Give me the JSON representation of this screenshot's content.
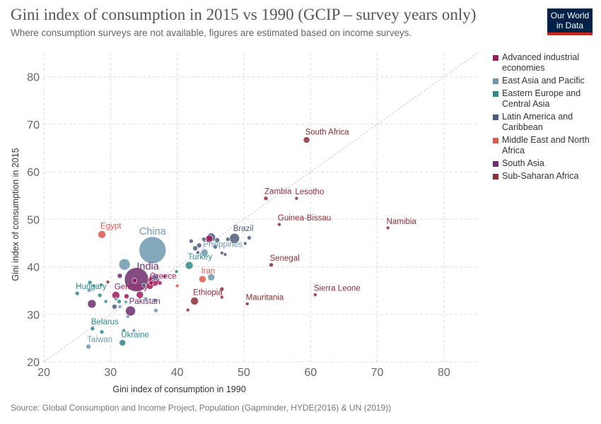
{
  "header": {
    "title": "Gini index of consumption in 2015 vs 1990 (GCIP – survey years only)",
    "subtitle": "Where consumption surveys are not available, figures are estimated based on income surveys.",
    "logo_line1": "Our World",
    "logo_line2": "in Data"
  },
  "footer": {
    "source": "Source: Global Consumption and Income Project, Population (Gapminder, HYDE(2016) & UN (2019))"
  },
  "chart_data": {
    "type": "scatter",
    "xlabel": "Gini index of consumption in 1990",
    "ylabel": "Gini index of consumption in 2015",
    "xlim": [
      20,
      85
    ],
    "ylim": [
      20,
      85
    ],
    "xticks": [
      20,
      30,
      40,
      50,
      60,
      70,
      80
    ],
    "yticks": [
      20,
      30,
      40,
      50,
      60,
      70,
      80
    ],
    "grid": true,
    "reference_line": "y = x",
    "legend_position": "right",
    "regions": [
      {
        "name": "Advanced industrial economies",
        "color": "#a2195b"
      },
      {
        "name": "East Asia and Pacific",
        "color": "#6d99b0"
      },
      {
        "name": "Eastern Europe and Central Asia",
        "color": "#2e8b8a"
      },
      {
        "name": "Latin America and Caribbean",
        "color": "#4c5d7b"
      },
      {
        "name": "Middle East and North Africa",
        "color": "#e0574f"
      },
      {
        "name": "South Asia",
        "color": "#6d2e6e"
      },
      {
        "name": "Sub-Saharan Africa",
        "color": "#8e2d38"
      }
    ],
    "points": [
      {
        "label": "South Africa",
        "x": 59.4,
        "y": 66.7,
        "r": 4.5,
        "region": 6
      },
      {
        "label": "Zambia",
        "x": 53.3,
        "y": 54.4,
        "r": 3,
        "region": 6
      },
      {
        "label": "Lesotho",
        "x": 57.9,
        "y": 54.4,
        "r": 2.5,
        "region": 6
      },
      {
        "label": "Guinea-Bissau",
        "x": 55.3,
        "y": 48.9,
        "r": 2.5,
        "region": 6
      },
      {
        "label": "Namibia",
        "x": 71.6,
        "y": 48.2,
        "r": 2.5,
        "region": 6
      },
      {
        "label": "Senegal",
        "x": 54.1,
        "y": 40.4,
        "r": 3,
        "region": 6
      },
      {
        "label": "Sierra Leone",
        "x": 60.7,
        "y": 34.1,
        "r": 2.5,
        "region": 6
      },
      {
        "label": "Mauritania",
        "x": 50.5,
        "y": 32.2,
        "r": 2.5,
        "region": 6
      },
      {
        "label": "Ethiopia",
        "x": 42.6,
        "y": 32.8,
        "r": 5.5,
        "region": 6
      },
      {
        "label": "Egypt",
        "x": 28.7,
        "y": 46.8,
        "r": 5.5,
        "region": 4
      },
      {
        "label": "Iran",
        "x": 43.8,
        "y": 37.4,
        "r": 5,
        "region": 4
      },
      {
        "label": "China",
        "x": 36.3,
        "y": 43.5,
        "r": 19,
        "region": 1
      },
      {
        "label": "Philippines",
        "x": 44.1,
        "y": 43.0,
        "r": 5,
        "region": 1
      },
      {
        "label": "Brazil",
        "x": 48.6,
        "y": 46.0,
        "r": 7,
        "region": 3
      },
      {
        "label": "India",
        "x": 33.9,
        "y": 37.3,
        "r": 17,
        "region": 5
      },
      {
        "label": "Pakistan",
        "x": 33.0,
        "y": 30.7,
        "r": 7,
        "region": 5
      },
      {
        "label": "Turkey",
        "x": 41.8,
        "y": 40.3,
        "r": 5.5,
        "region": 2
      },
      {
        "label": "Greece",
        "x": 36.1,
        "y": 36.6,
        "r": 3,
        "region": 0
      },
      {
        "label": "Germany",
        "x": 30.8,
        "y": 34.0,
        "r": 5.5,
        "region": 0
      },
      {
        "label": "Hungary",
        "x": 25.0,
        "y": 34.4,
        "r": 3,
        "region": 2
      },
      {
        "label": "Belarus",
        "x": 27.3,
        "y": 27.0,
        "r": 3,
        "region": 2
      },
      {
        "label": "Ukraine",
        "x": 31.8,
        "y": 24.0,
        "r": 4.5,
        "region": 2
      },
      {
        "label": "Taiwan",
        "x": 26.7,
        "y": 23.2,
        "r": 3.5,
        "region": 1
      },
      {
        "x": 32.1,
        "y": 40.5,
        "r": 8,
        "region": 1
      },
      {
        "x": 36.7,
        "y": 37.8,
        "r": 5,
        "region": 1
      },
      {
        "x": 45.1,
        "y": 37.8,
        "r": 5,
        "region": 1
      },
      {
        "x": 45.1,
        "y": 46.2,
        "r": 6,
        "region": 3
      },
      {
        "x": 44.8,
        "y": 45.9,
        "r": 5,
        "region": 0
      },
      {
        "x": 46.0,
        "y": 45.6,
        "r": 3.5,
        "region": 3
      },
      {
        "x": 44.0,
        "y": 45.8,
        "r": 3,
        "region": 3
      },
      {
        "x": 43.3,
        "y": 44.5,
        "r": 3.5,
        "region": 3
      },
      {
        "x": 42.1,
        "y": 45.4,
        "r": 3,
        "region": 3
      },
      {
        "x": 42.7,
        "y": 43.9,
        "r": 3.5,
        "region": 3
      },
      {
        "x": 45.7,
        "y": 44.2,
        "r": 3,
        "region": 3
      },
      {
        "x": 47.6,
        "y": 45.8,
        "r": 3,
        "region": 3
      },
      {
        "x": 50.8,
        "y": 46.1,
        "r": 3,
        "region": 3
      },
      {
        "x": 50.2,
        "y": 44.9,
        "r": 2.5,
        "region": 3
      },
      {
        "x": 46.7,
        "y": 42.9,
        "r": 2.5,
        "region": 3
      },
      {
        "x": 47.2,
        "y": 42.6,
        "r": 2.5,
        "region": 3
      },
      {
        "x": 43.1,
        "y": 43.0,
        "r": 2.5,
        "region": 3
      },
      {
        "x": 36.5,
        "y": 37.1,
        "r": 8,
        "region": 0
      },
      {
        "x": 35.9,
        "y": 36.0,
        "r": 5,
        "region": 0
      },
      {
        "x": 37.4,
        "y": 36.6,
        "r": 3,
        "region": 0
      },
      {
        "x": 33.6,
        "y": 37.1,
        "r": 3.5,
        "region": 0
      },
      {
        "x": 34.4,
        "y": 34.1,
        "r": 5,
        "region": 0
      },
      {
        "x": 32.4,
        "y": 33.8,
        "r": 3.5,
        "region": 0
      },
      {
        "x": 29.6,
        "y": 36.8,
        "r": 2.5,
        "region": 6
      },
      {
        "x": 31.4,
        "y": 38.1,
        "r": 3.5,
        "region": 5
      },
      {
        "x": 27.2,
        "y": 32.2,
        "r": 6,
        "region": 5
      },
      {
        "x": 30.6,
        "y": 31.6,
        "r": 3.5,
        "region": 3
      },
      {
        "x": 31.3,
        "y": 32.7,
        "r": 3,
        "region": 2
      },
      {
        "x": 26.9,
        "y": 36.7,
        "r": 3,
        "region": 2
      },
      {
        "x": 27.5,
        "y": 36.0,
        "r": 2.5,
        "region": 2
      },
      {
        "x": 28.4,
        "y": 34.0,
        "r": 3,
        "region": 2
      },
      {
        "x": 29.3,
        "y": 32.7,
        "r": 2.5,
        "region": 2
      },
      {
        "x": 26.8,
        "y": 35.1,
        "r": 3,
        "region": 1
      },
      {
        "x": 28.6,
        "y": 36.2,
        "r": 2.5,
        "region": 2
      },
      {
        "x": 28.7,
        "y": 26.3,
        "r": 3,
        "region": 2
      },
      {
        "x": 32.0,
        "y": 26.6,
        "r": 2.5,
        "region": 2
      },
      {
        "x": 33.5,
        "y": 26.6,
        "r": 2.5,
        "region": 1
      },
      {
        "x": 32.6,
        "y": 29.5,
        "r": 2.5,
        "region": 1
      },
      {
        "x": 31.4,
        "y": 31.6,
        "r": 2.5,
        "region": 1
      },
      {
        "x": 32.3,
        "y": 32.6,
        "r": 2.5,
        "region": 1
      },
      {
        "x": 36.8,
        "y": 30.8,
        "r": 3,
        "region": 1
      },
      {
        "x": 30.8,
        "y": 33.2,
        "r": 2.5,
        "region": 1
      },
      {
        "x": 35.3,
        "y": 33.3,
        "r": 2.5,
        "region": 1
      },
      {
        "x": 36.7,
        "y": 33.0,
        "r": 2.5,
        "region": 2
      },
      {
        "x": 40.0,
        "y": 36.0,
        "r": 2.5,
        "region": 4
      },
      {
        "x": 46.7,
        "y": 35.3,
        "r": 3,
        "region": 6
      },
      {
        "x": 46.7,
        "y": 33.6,
        "r": 2.5,
        "region": 6
      },
      {
        "x": 41.6,
        "y": 30.9,
        "r": 2.5,
        "region": 6
      },
      {
        "x": 38.1,
        "y": 38.0,
        "r": 2.5,
        "region": 0
      },
      {
        "x": 39.9,
        "y": 39.0,
        "r": 2.5,
        "region": 2
      },
      {
        "x": 35.0,
        "y": 36.1,
        "r": 3,
        "region": 2
      }
    ]
  }
}
